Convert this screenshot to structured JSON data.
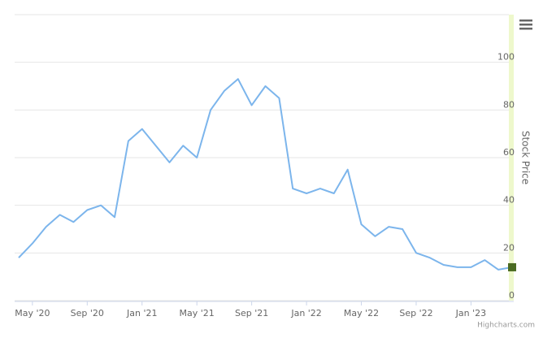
{
  "chart_data": {
    "type": "line",
    "y_axis_title": "Stock Price",
    "credit": "Highcharts.com",
    "x": [
      "2020-04",
      "2020-05",
      "2020-06",
      "2020-07",
      "2020-08",
      "2020-09",
      "2020-10",
      "2020-11",
      "2020-12",
      "2021-01",
      "2021-02",
      "2021-03",
      "2021-04",
      "2021-05",
      "2021-06",
      "2021-07",
      "2021-08",
      "2021-09",
      "2021-10",
      "2021-11",
      "2021-12",
      "2022-01",
      "2022-02",
      "2022-03",
      "2022-04",
      "2022-05",
      "2022-06",
      "2022-07",
      "2022-08",
      "2022-09",
      "2022-10",
      "2022-11",
      "2022-12",
      "2023-01",
      "2023-02",
      "2023-03",
      "2023-04"
    ],
    "series": [
      {
        "name": "Stock Price",
        "color": "#7cb5ec",
        "values": [
          18,
          24,
          31,
          36,
          33,
          38,
          40,
          35,
          67,
          72,
          65,
          58,
          65,
          60,
          80,
          88,
          93,
          82,
          90,
          85,
          47,
          45,
          47,
          45,
          55,
          32,
          27,
          31,
          30,
          20,
          18,
          15,
          14,
          14,
          17,
          13,
          14
        ]
      }
    ],
    "ylim": [
      0,
      120
    ],
    "yticks": [
      0,
      20,
      40,
      60,
      80,
      100
    ],
    "xticks": [
      {
        "value": "2020-05",
        "label": "May '20"
      },
      {
        "value": "2020-09",
        "label": "Sep '20"
      },
      {
        "value": "2021-01",
        "label": "Jan '21"
      },
      {
        "value": "2021-05",
        "label": "May '21"
      },
      {
        "value": "2021-09",
        "label": "Sep '21"
      },
      {
        "value": "2022-01",
        "label": "Jan '22"
      },
      {
        "value": "2022-05",
        "label": "May '22"
      },
      {
        "value": "2022-09",
        "label": "Sep '22"
      },
      {
        "value": "2023-01",
        "label": "Jan '23"
      }
    ],
    "grid": true
  }
}
